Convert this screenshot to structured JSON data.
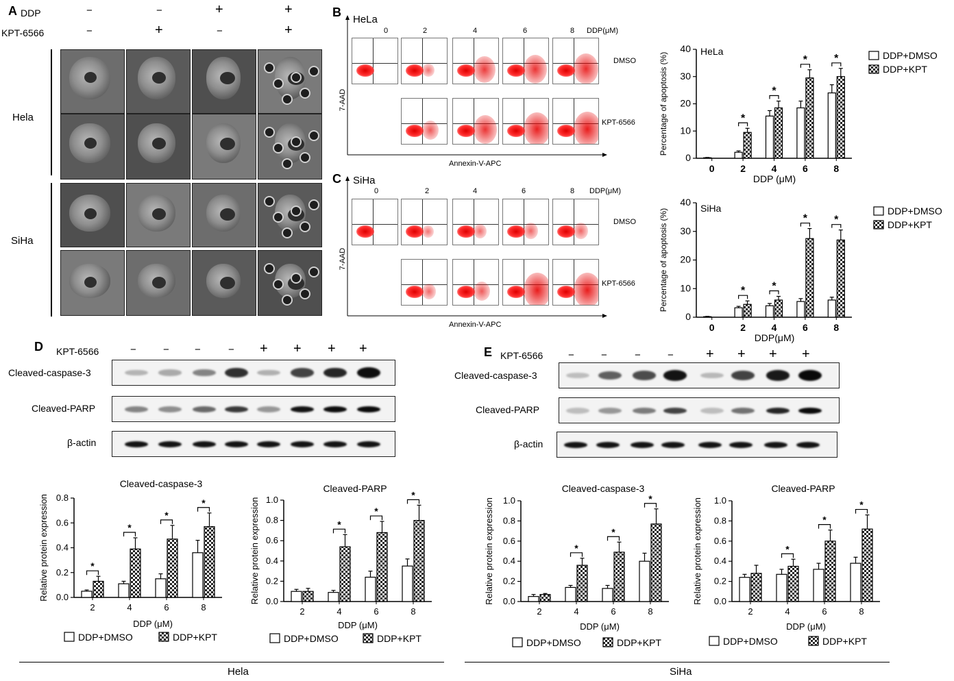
{
  "panelA": {
    "label": "A",
    "row_ddp": "DDP",
    "row_kpt": "KPT-6566",
    "ddp_signs": [
      "−",
      "−",
      "+",
      "+"
    ],
    "kpt_signs": [
      "−",
      "+",
      "−",
      "+"
    ],
    "cell_lines": [
      "Hela",
      "SiHa"
    ]
  },
  "panelB": {
    "label": "B",
    "cell": "HeLa",
    "doses": [
      "0",
      "2",
      "4",
      "6",
      "8"
    ],
    "dose_unit": "DDP(μM)",
    "row_labels": [
      "DMSO",
      "KPT-6566"
    ],
    "ylabel": "7-AAD",
    "xlabel": "Annexin-V-APC"
  },
  "panelC": {
    "label": "C",
    "cell": "SiHa",
    "doses": [
      "0",
      "2",
      "4",
      "6",
      "8"
    ],
    "dose_unit": "DDP(μM)",
    "row_labels": [
      "DMSO",
      "KPT-6566"
    ],
    "ylabel": "7-AAD",
    "xlabel": "Annexin-V-APC"
  },
  "panelD": {
    "label": "D",
    "kpt_label": "KPT-6566",
    "signs": [
      "−",
      "−",
      "−",
      "−",
      "+",
      "+",
      "+",
      "+"
    ],
    "rows": [
      "Cleaved-caspase-3",
      "Cleaved-PARP",
      "β-actin"
    ]
  },
  "panelE": {
    "label": "E",
    "kpt_label": "KPT-6566",
    "signs": [
      "−",
      "−",
      "−",
      "−",
      "+",
      "+",
      "+",
      "+"
    ],
    "rows": [
      "Cleaved-caspase-3",
      "Cleaved-PARP",
      "β-actin"
    ]
  },
  "footer": {
    "left": "Hela",
    "right": "SiHa"
  },
  "chart_data": [
    {
      "id": "hela-apoptosis",
      "type": "bar",
      "title": "HeLa",
      "xlabel": "DDP (μM)",
      "ylabel": "Percentage of apoptosis (%)",
      "ylim": [
        0,
        40
      ],
      "yticks": [
        0,
        10,
        20,
        30,
        40
      ],
      "categories": [
        "0",
        "2",
        "4",
        "6",
        "8"
      ],
      "series": [
        {
          "name": "DDP+DMSO",
          "values": [
            0.2,
            2.2,
            15.5,
            18.5,
            24
          ],
          "errors": [
            0.1,
            0.5,
            2,
            2.5,
            3
          ]
        },
        {
          "name": "DDP+KPT",
          "values": [
            null,
            9.5,
            18.5,
            29.5,
            30
          ],
          "errors": [
            null,
            1.5,
            2.5,
            3,
            3
          ]
        }
      ],
      "significance": [
        false,
        true,
        true,
        true,
        true
      ],
      "star": "*",
      "legend": "top-right"
    },
    {
      "id": "siha-apoptosis",
      "type": "bar",
      "title": "SiHa",
      "xlabel": "DDP(μM)",
      "ylabel": "Percentage of apoptosis (%)",
      "ylim": [
        0,
        40
      ],
      "yticks": [
        0,
        10,
        20,
        30,
        40
      ],
      "categories": [
        "0",
        "2",
        "4",
        "6",
        "8"
      ],
      "series": [
        {
          "name": "DDP+DMSO",
          "values": [
            0.2,
            3.3,
            4,
            5.5,
            6
          ],
          "errors": [
            0.1,
            0.5,
            0.8,
            1,
            1
          ]
        },
        {
          "name": "DDP+KPT",
          "values": [
            null,
            4.5,
            6,
            27.5,
            27
          ],
          "errors": [
            null,
            1.2,
            1.3,
            3.5,
            3.5
          ]
        }
      ],
      "significance": [
        false,
        true,
        true,
        true,
        true
      ],
      "star": "*",
      "legend": "top-right"
    },
    {
      "id": "hela-caspase",
      "type": "bar",
      "title": "Cleaved-caspase-3",
      "xlabel": "DDP (μM)",
      "ylabel": "Relative protein expression",
      "ylim": [
        0,
        0.8
      ],
      "yticks": [
        0.0,
        0.2,
        0.4,
        0.6,
        0.8
      ],
      "categories": [
        "2",
        "4",
        "6",
        "8"
      ],
      "series": [
        {
          "name": "DDP+DMSO",
          "values": [
            0.05,
            0.11,
            0.15,
            0.36
          ],
          "errors": [
            0.01,
            0.02,
            0.04,
            0.1
          ]
        },
        {
          "name": "DDP+KPT",
          "values": [
            0.13,
            0.39,
            0.47,
            0.57
          ],
          "errors": [
            0.04,
            0.09,
            0.11,
            0.11
          ]
        }
      ],
      "significance": [
        true,
        true,
        true,
        true
      ],
      "star": "*",
      "legend": "bottom"
    },
    {
      "id": "hela-parp",
      "type": "bar",
      "title": "Cleaved-PARP",
      "xlabel": "DDP (μM)",
      "ylabel": "Relative protein expression",
      "ylim": [
        0,
        1.0
      ],
      "yticks": [
        0.0,
        0.2,
        0.4,
        0.6,
        0.8,
        1.0
      ],
      "categories": [
        "2",
        "4",
        "6",
        "8"
      ],
      "series": [
        {
          "name": "DDP+DMSO",
          "values": [
            0.1,
            0.09,
            0.24,
            0.35
          ],
          "errors": [
            0.02,
            0.02,
            0.06,
            0.07
          ]
        },
        {
          "name": "DDP+KPT",
          "values": [
            0.1,
            0.54,
            0.68,
            0.8
          ],
          "errors": [
            0.03,
            0.12,
            0.11,
            0.15
          ]
        }
      ],
      "significance": [
        false,
        true,
        true,
        true
      ],
      "star": "*",
      "legend": "bottom"
    },
    {
      "id": "siha-caspase",
      "type": "bar",
      "title": "Cleaved-caspase-3",
      "xlabel": "DDP (μM)",
      "ylabel": "Relative protein expression",
      "ylim": [
        0,
        1.0
      ],
      "yticks": [
        0.0,
        0.2,
        0.4,
        0.6,
        0.8,
        1.0
      ],
      "categories": [
        "2",
        "4",
        "6",
        "8"
      ],
      "series": [
        {
          "name": "DDP+DMSO",
          "values": [
            0.05,
            0.14,
            0.13,
            0.4
          ],
          "errors": [
            0.02,
            0.02,
            0.03,
            0.08
          ]
        },
        {
          "name": "DDP+KPT",
          "values": [
            0.07,
            0.36,
            0.49,
            0.77
          ],
          "errors": [
            0.01,
            0.07,
            0.1,
            0.15
          ]
        }
      ],
      "significance": [
        false,
        true,
        true,
        true
      ],
      "star": "*",
      "legend": "bottom"
    },
    {
      "id": "siha-parp",
      "type": "bar",
      "title": "Cleaved-PARP",
      "xlabel": "DDP (μM)",
      "ylabel": "Relative protein expression",
      "ylim": [
        0,
        1.0
      ],
      "yticks": [
        0.0,
        0.2,
        0.4,
        0.6,
        0.8,
        1.0
      ],
      "categories": [
        "2",
        "4",
        "6",
        "8"
      ],
      "series": [
        {
          "name": "DDP+DMSO",
          "values": [
            0.24,
            0.27,
            0.32,
            0.38
          ],
          "errors": [
            0.03,
            0.05,
            0.06,
            0.06
          ]
        },
        {
          "name": "DDP+KPT",
          "values": [
            0.28,
            0.35,
            0.6,
            0.72
          ],
          "errors": [
            0.08,
            0.07,
            0.11,
            0.14
          ]
        }
      ],
      "significance": [
        false,
        true,
        true,
        true
      ],
      "star": "*",
      "legend": "bottom"
    }
  ]
}
